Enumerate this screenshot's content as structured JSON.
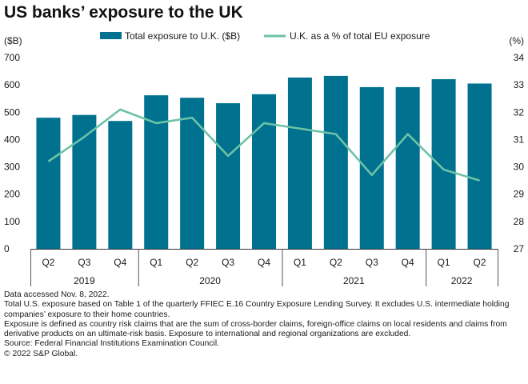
{
  "title": "US banks’ exposure to the UK",
  "chart_data": {
    "type": "bar+line",
    "quarters": [
      "Q2",
      "Q3",
      "Q4",
      "Q1",
      "Q2",
      "Q3",
      "Q4",
      "Q1",
      "Q2",
      "Q3",
      "Q4",
      "Q1",
      "Q2"
    ],
    "years": [
      {
        "label": "2019",
        "count": 3
      },
      {
        "label": "2020",
        "count": 4
      },
      {
        "label": "2021",
        "count": 4
      },
      {
        "label": "2022",
        "count": 2
      }
    ],
    "series": [
      {
        "name": "Total exposure to U.K. ($B)",
        "type": "bar",
        "axis": "left",
        "color": "#00728f",
        "values": [
          480,
          490,
          468,
          562,
          553,
          533,
          566,
          627,
          633,
          592,
          592,
          621,
          605
        ]
      },
      {
        "name": "U.K. as a % of total EU exposure",
        "type": "line",
        "axis": "right",
        "color": "#6cc2a6",
        "values": [
          30.2,
          31.1,
          32.1,
          31.6,
          31.8,
          30.4,
          31.6,
          31.4,
          31.2,
          29.7,
          31.2,
          29.9,
          29.5
        ]
      }
    ],
    "left_axis": {
      "label": "($B)",
      "min": 0,
      "max": 700,
      "ticks": [
        0,
        100,
        200,
        300,
        400,
        500,
        600,
        700
      ]
    },
    "right_axis": {
      "label": "(%)",
      "min": 27,
      "max": 34,
      "ticks": [
        27,
        28,
        29,
        30,
        31,
        32,
        33,
        34
      ]
    },
    "legend_position": "top-center",
    "grid": false
  },
  "notes": [
    "Data accessed Nov. 8, 2022.",
    "Total U.S. exposure based on Table 1 of the quarterly FFIEC E.16 Country Exposure Lending Survey. It excludes U.S. intermediate holding companies’ exposure to their home countries.",
    "Exposure is defined as country risk claims that are the sum of cross-border claims, foreign-office claims on local residents and claims from derivative products on an ultimate-risk basis. Exposure to international and regional organizations are excluded.",
    "Source: Federal Financial Institutions Examination Council.",
    "© 2022 S&P Global."
  ]
}
